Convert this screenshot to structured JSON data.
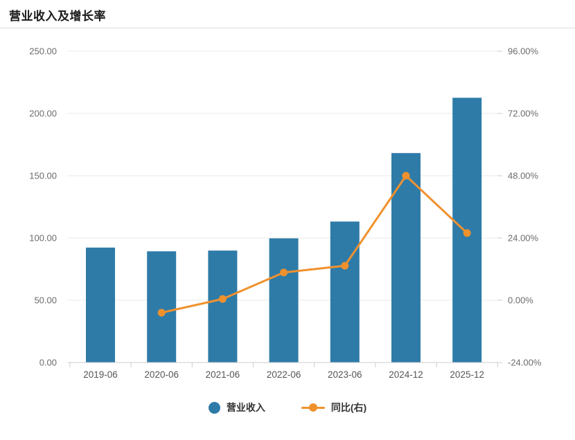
{
  "title": "营业收入及增长率",
  "colors": {
    "bar": "#2e7ba8",
    "line": "#f0912d",
    "grid": "#e9e9e9",
    "axis": "#cccccc",
    "tick_label": "#6b6b6b",
    "x_label": "#555555",
    "title": "#1a1a1a",
    "legend_text": "#333333",
    "divider": "#dcdcdc",
    "background": "#ffffff"
  },
  "chart_data": {
    "type": "bar",
    "title": "营业收入及增长率",
    "categories": [
      "2019-06",
      "2020-06",
      "2021-06",
      "2022-06",
      "2023-06",
      "2024-12",
      "2025-12"
    ],
    "series": [
      {
        "name": "营业收入",
        "type": "bar",
        "axis": "left",
        "values": [
          92.3,
          89.3,
          89.9,
          99.7,
          113.2,
          168.2,
          212.6
        ]
      },
      {
        "name": "同比(右)",
        "type": "line",
        "axis": "right",
        "values": [
          null,
          -4.8,
          0.5,
          10.7,
          13.3,
          48.0,
          25.9
        ]
      }
    ],
    "left_axis": {
      "min": 0,
      "max": 250,
      "step": 50,
      "tick_labels": [
        "0.00",
        "50.00",
        "100.00",
        "150.00",
        "200.00",
        "250.00"
      ]
    },
    "right_axis": {
      "min": -24,
      "max": 96,
      "step": 24,
      "tick_labels": [
        "-24.00%",
        "0.00%",
        "24.00%",
        "48.00%",
        "72.00%",
        "96.00%"
      ]
    },
    "grid": true,
    "legend_position": "bottom"
  },
  "legend": {
    "items": [
      {
        "label": "营业收入",
        "marker": "circle"
      },
      {
        "label": "同比(右)",
        "marker": "line-dot"
      }
    ]
  }
}
